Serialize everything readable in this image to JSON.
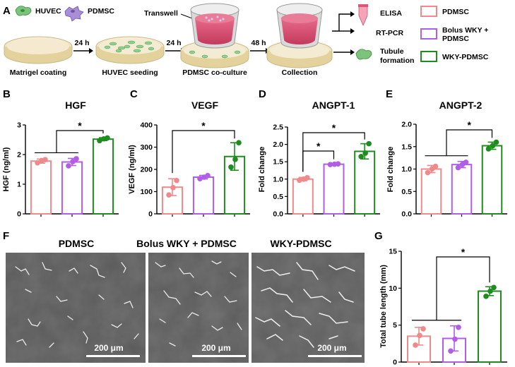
{
  "colors": {
    "PDMSC": "#f08a8a",
    "Bolus WKY + PDMSC": "#b25de6",
    "WKY-PDMSC": "#1e8c1e"
  },
  "panel_a": {
    "letter": "A",
    "cells": [
      "HUVEC",
      "PDMSC"
    ],
    "steps": [
      "Matrigel coating",
      "HUVEC seeding",
      "PDMSC co-culture",
      "Collection"
    ],
    "times": [
      "24 h",
      "24 h",
      "48 h"
    ],
    "transwell": "Transwell",
    "outputs": [
      "ELISA",
      "RT-PCR",
      "Tubule formation"
    ],
    "legend": [
      "PDMSC",
      "Bolus WKY + PDMSC",
      "WKY-PDMSC"
    ]
  },
  "panel_f": {
    "letter": "F",
    "titles": [
      "PDMSC",
      "Bolus WKY + PDMSC",
      "WKY-PDMSC"
    ],
    "scale_bar": "200 μm"
  },
  "chart_data": [
    {
      "id": "B",
      "type": "bar",
      "title": "HGF",
      "ylabel": "HGF (ng/ml)",
      "categories": [
        "PDMSC",
        "Bolus WKY + PDMSC",
        "WKY-PDMSC"
      ],
      "values": [
        1.78,
        1.75,
        2.52
      ],
      "errors": [
        0.07,
        0.12,
        0.05
      ],
      "points": [
        [
          1.72,
          1.8,
          1.83
        ],
        [
          1.62,
          1.76,
          1.86
        ],
        [
          2.47,
          2.53,
          2.56
        ]
      ],
      "ylim": [
        0,
        3
      ],
      "yticks": [
        "0",
        "1",
        "2",
        "3"
      ],
      "significance": [
        {
          "from": [
            0,
            1
          ],
          "to": 2,
          "label": "*"
        }
      ]
    },
    {
      "id": "C",
      "type": "bar",
      "title": "VEGF",
      "ylabel": "VEGF (ng/ml)",
      "categories": [
        "PDMSC",
        "Bolus WKY + PDMSC",
        "WKY-PDMSC"
      ],
      "values": [
        120,
        165,
        258
      ],
      "errors": [
        38,
        8,
        62
      ],
      "points": [
        [
          85,
          118,
          150
        ],
        [
          158,
          165,
          172
        ],
        [
          210,
          245,
          320
        ]
      ],
      "ylim": [
        0,
        400
      ],
      "yticks": [
        "0",
        "100",
        "200",
        "300",
        "400"
      ],
      "significance": [
        {
          "from": [
            0
          ],
          "to": 2,
          "label": "*"
        }
      ]
    },
    {
      "id": "D",
      "type": "bar",
      "title": "ANGPT-1",
      "ylabel": "Fold change",
      "categories": [
        "PDMSC",
        "Bolus WKY + PDMSC",
        "WKY-PDMSC"
      ],
      "values": [
        1.0,
        1.43,
        1.8
      ],
      "errors": [
        0.05,
        0.02,
        0.22
      ],
      "points": [
        [
          0.97,
          1.0,
          1.04
        ],
        [
          1.42,
          1.43,
          1.44
        ],
        [
          1.65,
          1.75,
          2.02
        ]
      ],
      "ylim": [
        0,
        2.5
      ],
      "yticks": [
        "0.0",
        "0.5",
        "1.0",
        "1.5",
        "2.0",
        "2.5"
      ],
      "significance": [
        {
          "from": [
            0
          ],
          "to": 1,
          "label": "*"
        },
        {
          "from": [
            0
          ],
          "to": 2,
          "label": "*"
        }
      ]
    },
    {
      "id": "E",
      "type": "bar",
      "title": "ANGPT-2",
      "ylabel": "Fold change",
      "categories": [
        "PDMSC",
        "Bolus WKY + PDMSC",
        "WKY-PDMSC"
      ],
      "values": [
        1.0,
        1.1,
        1.52
      ],
      "errors": [
        0.08,
        0.07,
        0.08
      ],
      "points": [
        [
          0.92,
          1.0,
          1.06
        ],
        [
          1.03,
          1.1,
          1.15
        ],
        [
          1.45,
          1.52,
          1.6
        ]
      ],
      "ylim": [
        0,
        2
      ],
      "yticks": [
        "0.0",
        "0.5",
        "1.0",
        "1.5",
        "2.0"
      ],
      "significance": [
        {
          "from": [
            0,
            1
          ],
          "to": 2,
          "label": "*"
        }
      ]
    },
    {
      "id": "G",
      "type": "bar",
      "title": "",
      "ylabel": "Total tube length (mm)",
      "categories": [
        "PDMSC",
        "Bolus WKY + PDMSC",
        "WKY-PDMSC"
      ],
      "values": [
        3.5,
        3.2,
        9.6
      ],
      "errors": [
        1.2,
        1.7,
        0.6
      ],
      "points": [
        [
          2.3,
          3.6,
          4.5
        ],
        [
          1.5,
          3.1,
          4.7
        ],
        [
          8.9,
          9.6,
          10.1
        ]
      ],
      "ylim": [
        0,
        15
      ],
      "yticks": [
        "0",
        "5",
        "10",
        "15"
      ],
      "significance": [
        {
          "from": [
            0,
            1
          ],
          "to": 2,
          "label": "*"
        }
      ]
    }
  ]
}
